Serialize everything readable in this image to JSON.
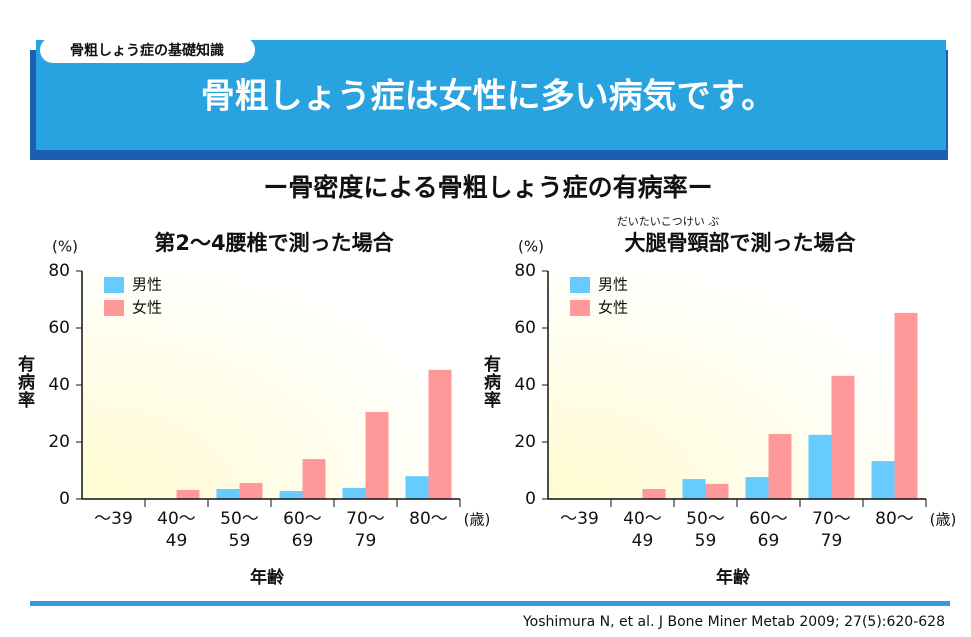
{
  "header": {
    "tag": "骨粗しょう症の基礎知識",
    "title": "骨粗しょう症は女性に多い病気です。"
  },
  "subtitle": "ー骨密度による骨粗しょう症の有病率ー",
  "citation": "Yoshimura N, et al. J Bone Miner Metab 2009; 27(5):620-628",
  "chart_data": [
    {
      "type": "bar",
      "title": "第2～4腰椎で測った場合",
      "y_unit": "(%)",
      "y_label": "有病率",
      "x_label": "年齢",
      "x_unit": "(歳)",
      "categories": [
        "～39",
        "40～\n49",
        "50～\n59",
        "60～\n69",
        "70～\n79",
        "80～"
      ],
      "series": [
        {
          "name": "男性",
          "color": "#66ccff",
          "values": [
            0,
            0,
            3.5,
            2.8,
            3.9,
            8
          ]
        },
        {
          "name": "女性",
          "color": "#ff9999",
          "values": [
            0,
            3.2,
            5.6,
            14,
            30.5,
            45.3
          ]
        }
      ],
      "ylim": [
        0,
        80
      ],
      "yticks": [
        0,
        20,
        40,
        60,
        80
      ],
      "legend": "top-left"
    },
    {
      "type": "bar",
      "title": "大腿骨頸部で測った場合",
      "title_ruby": "だいたいこつけい ぶ",
      "y_unit": "(%)",
      "y_label": "有病率",
      "x_label": "年齢",
      "x_unit": "(歳)",
      "categories": [
        "～39",
        "40～\n49",
        "50～\n59",
        "60～\n69",
        "70～\n79",
        "80～"
      ],
      "series": [
        {
          "name": "男性",
          "color": "#66ccff",
          "values": [
            0,
            0,
            7,
            7.7,
            22.5,
            13.3
          ]
        },
        {
          "name": "女性",
          "color": "#ff9999",
          "values": [
            0,
            3.5,
            5.3,
            22.8,
            43.2,
            65.3
          ]
        }
      ],
      "ylim": [
        0,
        80
      ],
      "yticks": [
        0,
        20,
        40,
        60,
        80
      ],
      "legend": "top-left"
    }
  ]
}
